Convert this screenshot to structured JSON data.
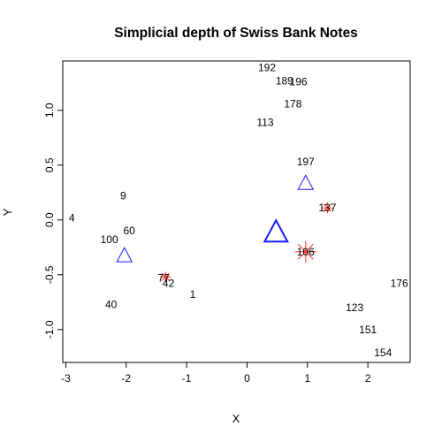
{
  "chart_data": {
    "type": "scatter",
    "title": "Simplicial depth of Swiss Bank Notes",
    "xlabel": "X",
    "ylabel": "Y",
    "xlim": [
      -3.05,
      2.7
    ],
    "ylim": [
      -1.3,
      1.45
    ],
    "xticks": [
      -3,
      -2,
      -1,
      0,
      1,
      2
    ],
    "yticks": [
      -1.0,
      -0.5,
      0.0,
      0.5,
      1.0
    ],
    "ytick_labels": [
      "-1.0",
      "-0.5",
      "0.0",
      "0.5",
      "1.0"
    ],
    "grid": false,
    "points": [
      {
        "label": "192",
        "x": 0.33,
        "y": 1.39
      },
      {
        "label": "189",
        "x": 0.62,
        "y": 1.27
      },
      {
        "label": "196",
        "x": 0.85,
        "y": 1.26
      },
      {
        "label": "178",
        "x": 0.76,
        "y": 1.06
      },
      {
        "label": "113",
        "x": 0.3,
        "y": 0.89
      },
      {
        "label": "197",
        "x": 0.97,
        "y": 0.53
      },
      {
        "label": "9",
        "x": -2.05,
        "y": 0.22
      },
      {
        "label": "137",
        "x": 1.33,
        "y": 0.11
      },
      {
        "label": "4",
        "x": -2.9,
        "y": 0.02
      },
      {
        "label": "60",
        "x": -1.95,
        "y": -0.1
      },
      {
        "label": "100",
        "x": -2.28,
        "y": -0.18
      },
      {
        "label": "106",
        "x": 0.97,
        "y": -0.29
      },
      {
        "label": "77",
        "x": -1.38,
        "y": -0.53
      },
      {
        "label": "42",
        "x": -1.3,
        "y": -0.58
      },
      {
        "label": "176",
        "x": 2.52,
        "y": -0.58
      },
      {
        "label": "1",
        "x": -0.9,
        "y": -0.68
      },
      {
        "label": "40",
        "x": -2.25,
        "y": -0.77
      },
      {
        "label": "123",
        "x": 1.78,
        "y": -0.8
      },
      {
        "label": "151",
        "x": 2.0,
        "y": -1.0
      },
      {
        "label": "154",
        "x": 2.25,
        "y": -1.21
      }
    ],
    "triangles": [
      {
        "x": -2.03,
        "y": -0.33,
        "size": "small"
      },
      {
        "x": 0.97,
        "y": 0.33,
        "size": "small"
      },
      {
        "x": 0.48,
        "y": -0.12,
        "size": "large"
      }
    ],
    "stars": [
      {
        "x": 0.97,
        "y": -0.29,
        "size": "large"
      },
      {
        "x": 1.33,
        "y": 0.11,
        "size": "small"
      },
      {
        "x": -1.35,
        "y": -0.52,
        "size": "small"
      }
    ],
    "colors": {
      "triangle": "#1a1aff",
      "star": "#ff3030",
      "axis": "#000000"
    }
  }
}
